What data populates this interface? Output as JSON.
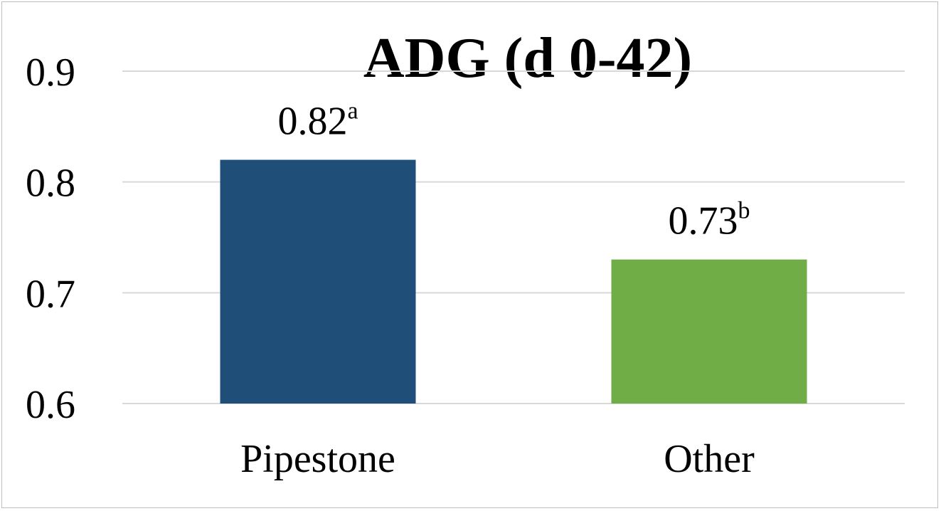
{
  "chart_data": {
    "type": "bar",
    "title": "ADG (d 0-42)",
    "xlabel": "",
    "ylabel": "",
    "categories": [
      "Pipestone",
      "Other"
    ],
    "values": [
      0.82,
      0.73
    ],
    "data_labels": [
      "0.82",
      "0.73"
    ],
    "data_label_superscripts": [
      "a",
      "b"
    ],
    "bar_colors": [
      "#1f4e79",
      "#70ad47"
    ],
    "ylim": [
      0.6,
      0.9
    ],
    "yticks": [
      "0.6",
      "0.7",
      "0.8",
      "0.9"
    ],
    "grid": true,
    "legend": "none"
  }
}
